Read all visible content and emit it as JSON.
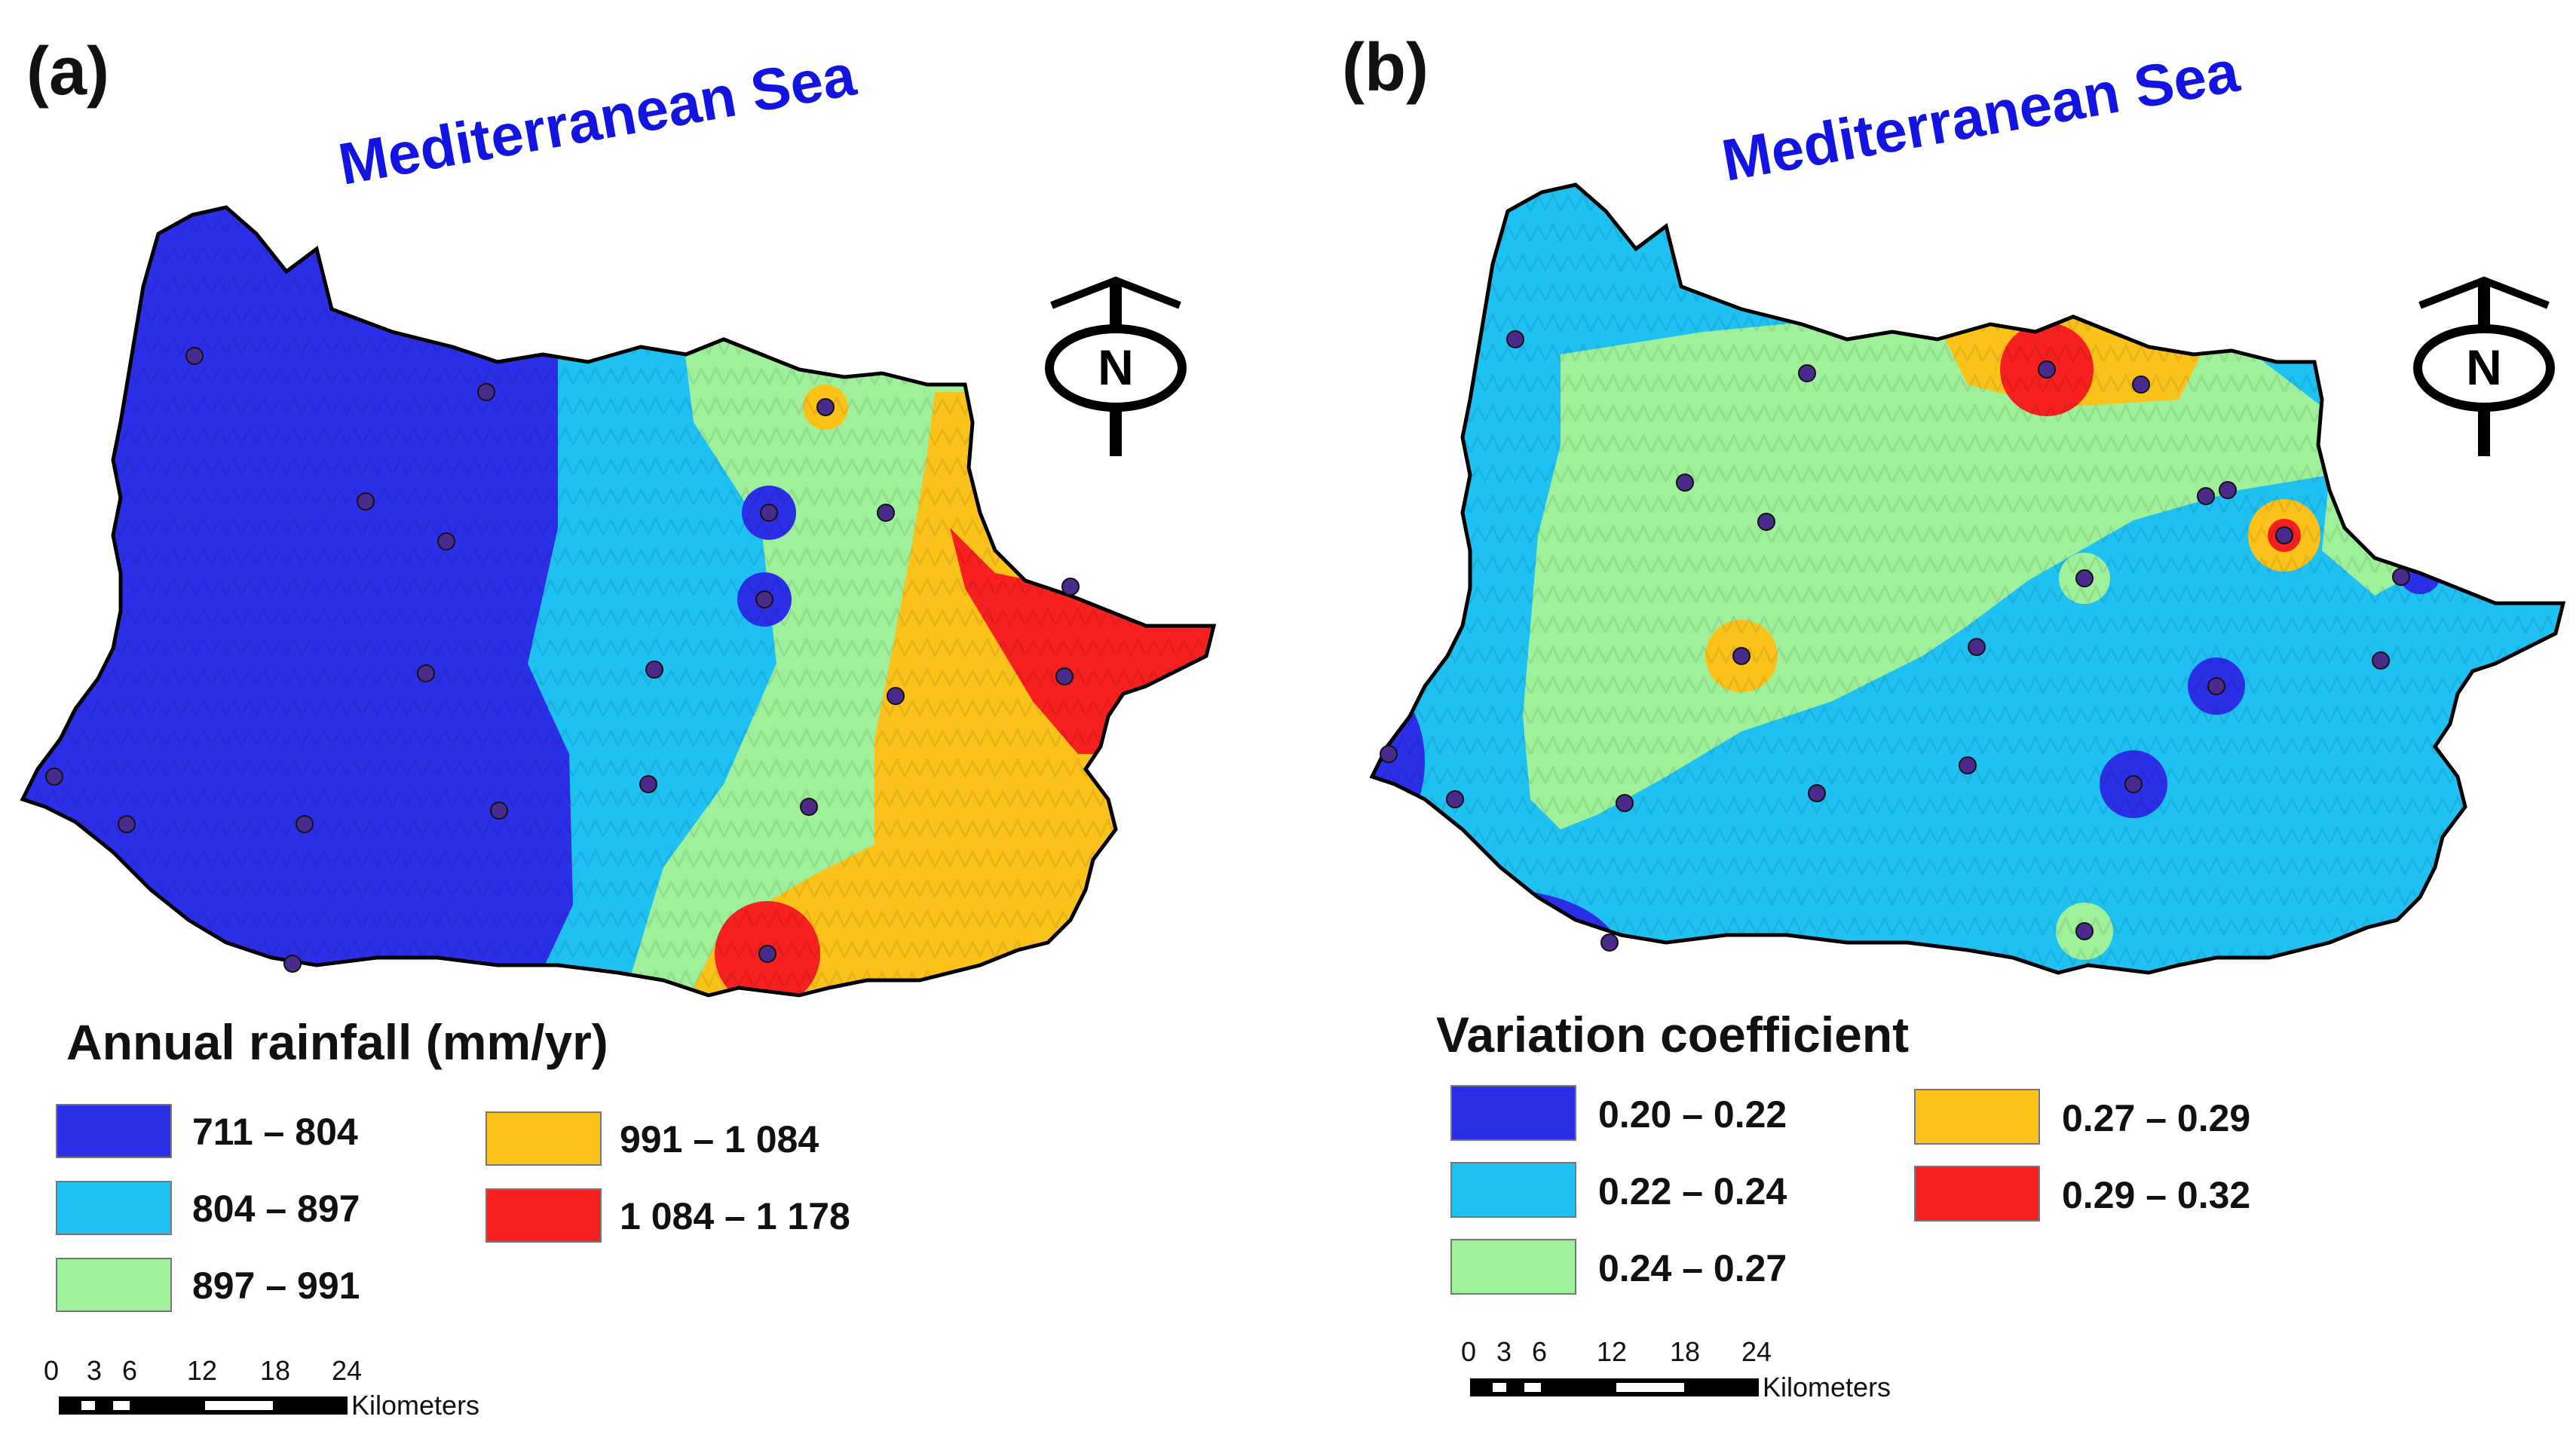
{
  "panels": [
    {
      "label": "(a)",
      "sea_label": "Mediterranean Sea",
      "north_label": "N",
      "legend": {
        "title": "Annual rainfall (mm/yr)",
        "classes": [
          {
            "label": "711 – 804",
            "color": "#2b2fe8"
          },
          {
            "label": "804 – 897",
            "color": "#1ec1f2"
          },
          {
            "label": "897 – 991",
            "color": "#9ef09a"
          },
          {
            "label": "991 – 1 084",
            "color": "#fbc21a"
          },
          {
            "label": "1 084 – 1 178",
            "color": "#f6201f"
          }
        ]
      },
      "scale_bar": {
        "ticks": [
          "0",
          "3",
          "6",
          "12",
          "18",
          "24"
        ],
        "unit": "Kilometers"
      }
    },
    {
      "label": "(b)",
      "sea_label": "Mediterranean Sea",
      "north_label": "N",
      "legend": {
        "title": "Variation coefficient",
        "classes": [
          {
            "label": "0.20 – 0.22",
            "color": "#2b2fe8"
          },
          {
            "label": "0.22 – 0.24",
            "color": "#1ec1f2"
          },
          {
            "label": "0.24 – 0.27",
            "color": "#9ef09a"
          },
          {
            "label": "0.27 – 0.29",
            "color": "#fbc21a"
          },
          {
            "label": "0.29 – 0.32",
            "color": "#f6201f"
          }
        ]
      },
      "scale_bar": {
        "ticks": [
          "0",
          "3",
          "6",
          "12",
          "18",
          "24"
        ],
        "unit": "Kilometers"
      }
    }
  ],
  "station_color": "#4a2a8a"
}
